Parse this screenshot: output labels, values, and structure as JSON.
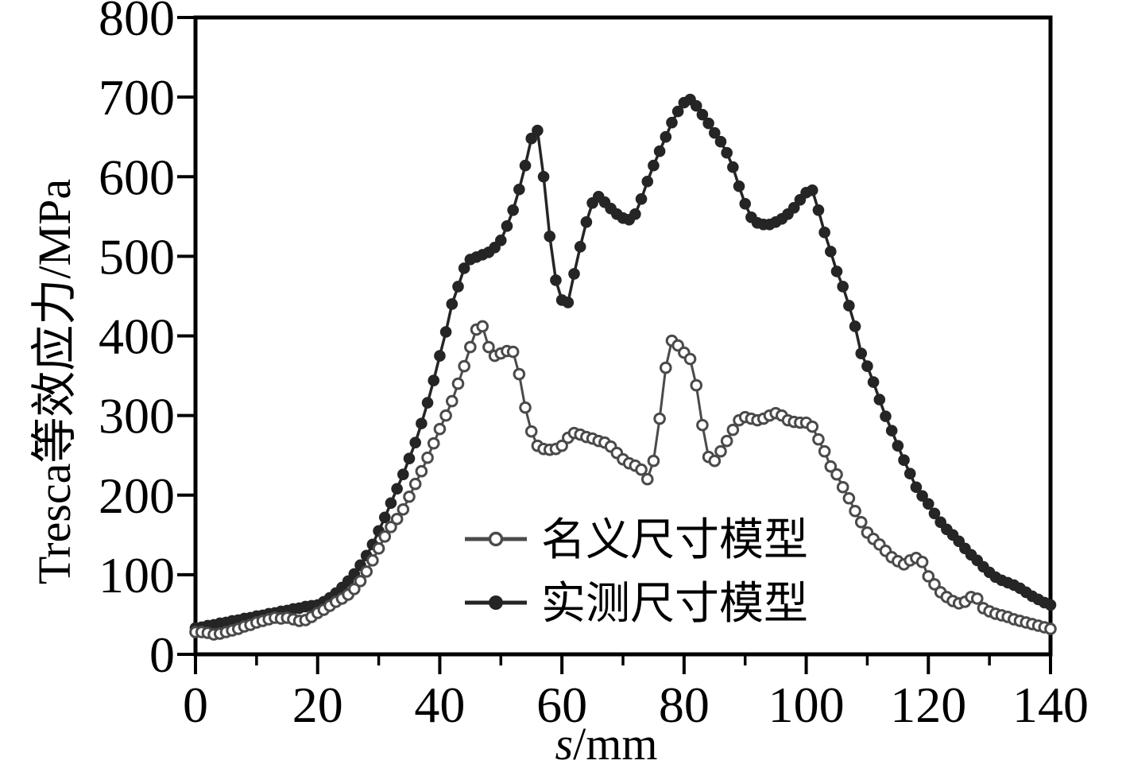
{
  "figure": {
    "background": "#ffffff",
    "frame_color": "#000000",
    "text_color": "#000000",
    "y_axis": {
      "title": "Tresca等效应力/MPa",
      "min": 0,
      "max": 800,
      "major_ticks": [
        0,
        100,
        200,
        300,
        400,
        500,
        600,
        700,
        800
      ]
    },
    "x_axis": {
      "title_s": "s",
      "title_unit": "/mm",
      "min": 0,
      "max": 140,
      "major_ticks": [
        0,
        20,
        40,
        60,
        80,
        100,
        120,
        140
      ],
      "minor_ticks": [
        10,
        30,
        50,
        70,
        90,
        110,
        130
      ]
    }
  },
  "chart_data": {
    "type": "line",
    "title": "",
    "xlabel": "s/mm",
    "ylabel": "Tresca等效应力/MPa",
    "xlim": [
      0,
      140
    ],
    "ylim": [
      0,
      800
    ],
    "grid": false,
    "legend_position": "inside-bottom-center",
    "x_start": 0,
    "x_step": 1,
    "series": [
      {
        "name": "名义尺寸模型",
        "marker": "open-circle",
        "color": "#4a4a4a",
        "values": [
          28,
          28,
          27,
          25,
          26,
          28,
          30,
          32,
          35,
          37,
          40,
          42,
          44,
          46,
          45,
          46,
          44,
          42,
          43,
          47,
          52,
          56,
          61,
          66,
          70,
          75,
          82,
          92,
          104,
          118,
          133,
          148,
          160,
          170,
          182,
          198,
          214,
          230,
          247,
          265,
          283,
          300,
          318,
          340,
          362,
          386,
          408,
          412,
          386,
          375,
          378,
          381,
          380,
          352,
          310,
          280,
          262,
          258,
          257,
          258,
          262,
          272,
          278,
          276,
          273,
          271,
          268,
          266,
          261,
          253,
          245,
          240,
          237,
          232,
          220,
          243,
          296,
          360,
          394,
          388,
          379,
          371,
          338,
          288,
          248,
          243,
          255,
          268,
          282,
          294,
          298,
          296,
          294,
          296,
          300,
          303,
          300,
          294,
          292,
          291,
          291,
          286,
          270,
          255,
          236,
          226,
          210,
          196,
          180,
          166,
          153,
          145,
          138,
          130,
          122,
          117,
          113,
          118,
          121,
          116,
          98,
          88,
          78,
          72,
          67,
          64,
          66,
          72,
          70,
          58,
          54,
          51,
          49,
          47,
          44,
          42,
          40,
          38,
          36,
          34,
          32
        ]
      },
      {
        "name": "实测尺寸模型",
        "marker": "filled-circle",
        "color": "#252525",
        "values": [
          33,
          34,
          36,
          37,
          39,
          40,
          42,
          43,
          45,
          46,
          48,
          49,
          51,
          52,
          54,
          55,
          57,
          58,
          60,
          61,
          62,
          66,
          71,
          77,
          84,
          92,
          101,
          112,
          124,
          138,
          155,
          172,
          190,
          208,
          226,
          246,
          266,
          290,
          316,
          344,
          375,
          405,
          440,
          462,
          485,
          496,
          499,
          502,
          505,
          511,
          520,
          538,
          558,
          584,
          614,
          648,
          658,
          600,
          525,
          470,
          445,
          442,
          478,
          512,
          543,
          567,
          575,
          568,
          560,
          553,
          548,
          546,
          553,
          572,
          594,
          614,
          632,
          650,
          668,
          682,
          693,
          697,
          689,
          678,
          667,
          655,
          644,
          630,
          612,
          588,
          566,
          549,
          542,
          540,
          540,
          543,
          547,
          553,
          561,
          571,
          580,
          583,
          558,
          530,
          506,
          481,
          462,
          438,
          412,
          378,
          362,
          342,
          320,
          299,
          281,
          262,
          244,
          227,
          210,
          199,
          189,
          177,
          166,
          157,
          150,
          142,
          133,
          125,
          118,
          110,
          103,
          97,
          93,
          90,
          87,
          83,
          78,
          73,
          69,
          65,
          62
        ]
      }
    ]
  }
}
